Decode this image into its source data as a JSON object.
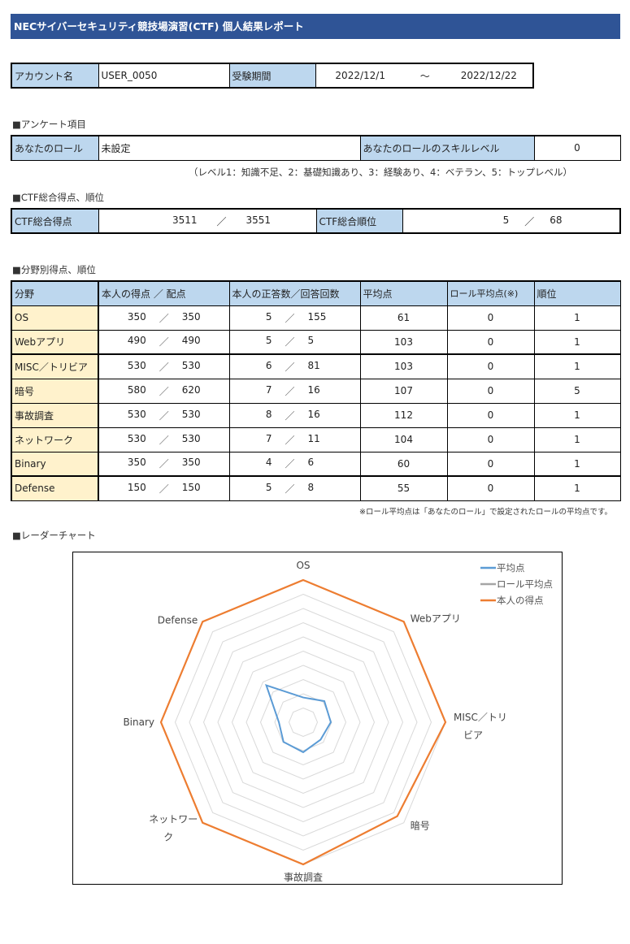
{
  "report": {
    "title": "NECサイバーセキュリティ競技場演習(CTF) 個人結果レポート"
  },
  "account": {
    "account_label": "アカウント名",
    "account_value": "USER_0050",
    "period_label": "受験期間",
    "period_start": "2022/12/1",
    "period_sep": "～",
    "period_end": "2022/12/22"
  },
  "survey": {
    "section_title": "■アンケート項目",
    "role_label": "あなたのロール",
    "role_value": "未設定",
    "skill_label": "あなたのロールのスキルレベル",
    "skill_value": "0",
    "level_note": "（レベル1：知識不足、2：基礎知識あり、3：経験あり、4：ベテラン、5：トップレベル）"
  },
  "overall": {
    "section_title": "■CTF総合得点、順位",
    "score_label": "CTF総合得点",
    "score": "3511",
    "score_max": "3551",
    "rank_label": "CTF総合順位",
    "rank": "5",
    "rank_total": "68",
    "slash": "／"
  },
  "fields": {
    "section_title": "■分野別得点、順位",
    "headers": {
      "field": "分野",
      "score": "本人の得点 ／ 配点",
      "answers": "本人の正答数／回答回数",
      "average": "平均点",
      "role_average": "ロール平均点(※)",
      "rank": "順位"
    },
    "rows": [
      {
        "field": "OS",
        "score": "350",
        "max": "350",
        "correct": "5",
        "attempts": "155",
        "average": "61",
        "role_average": "0",
        "rank": "1"
      },
      {
        "field": "Webアプリ",
        "score": "490",
        "max": "490",
        "correct": "5",
        "attempts": "5",
        "average": "103",
        "role_average": "0",
        "rank": "1"
      },
      {
        "field": "MISC／トリビア",
        "score": "530",
        "max": "530",
        "correct": "6",
        "attempts": "81",
        "average": "103",
        "role_average": "0",
        "rank": "1"
      },
      {
        "field": "暗号",
        "score": "580",
        "max": "620",
        "correct": "7",
        "attempts": "16",
        "average": "107",
        "role_average": "0",
        "rank": "5"
      },
      {
        "field": "事故調査",
        "score": "530",
        "max": "530",
        "correct": "8",
        "attempts": "16",
        "average": "112",
        "role_average": "0",
        "rank": "1"
      },
      {
        "field": "ネットワーク",
        "score": "530",
        "max": "530",
        "correct": "7",
        "attempts": "11",
        "average": "104",
        "role_average": "0",
        "rank": "1"
      },
      {
        "field": "Binary",
        "score": "350",
        "max": "350",
        "correct": "4",
        "attempts": "6",
        "average": "60",
        "role_average": "0",
        "rank": "1"
      },
      {
        "field": "Defense",
        "score": "150",
        "max": "150",
        "correct": "5",
        "attempts": "8",
        "average": "55",
        "role_average": "0",
        "rank": "1"
      }
    ],
    "footnote": "※ロール平均点は「あなたのロール」で設定されたロールの平均点です。"
  },
  "radar": {
    "section_title": "■レーダーチャート"
  },
  "chart_data": {
    "type": "radar",
    "title": "",
    "categories": [
      "OS",
      "Webアプリ",
      "MISC／トリビア",
      "暗号",
      "事故調査",
      "ネットワーク",
      "Binary",
      "Defense"
    ],
    "category_labels": [
      [
        "OS"
      ],
      [
        "Webアプリ"
      ],
      [
        "MISC／トリ",
        "ビア"
      ],
      [
        "暗号"
      ],
      [
        "事故調査"
      ],
      [
        "ネットワー",
        "ク"
      ],
      [
        "Binary"
      ],
      [
        "Defense"
      ]
    ],
    "scale": "ratio of max points (0–100%)",
    "ylim": [
      0,
      100
    ],
    "grid_steps": 10,
    "legend_position": "top-right",
    "series": [
      {
        "name": "平均点",
        "color": "#5b9bd5",
        "values": [
          17.4,
          21.0,
          19.4,
          17.3,
          21.1,
          19.6,
          17.1,
          36.7
        ]
      },
      {
        "name": "ロール平均点",
        "color": "#a5a5a5",
        "values": [
          0,
          0,
          0,
          0,
          0,
          0,
          0,
          0
        ]
      },
      {
        "name": "本人の得点",
        "color": "#ed7d31",
        "values": [
          100,
          100,
          100,
          93.5,
          100,
          100,
          100,
          100
        ]
      }
    ]
  }
}
